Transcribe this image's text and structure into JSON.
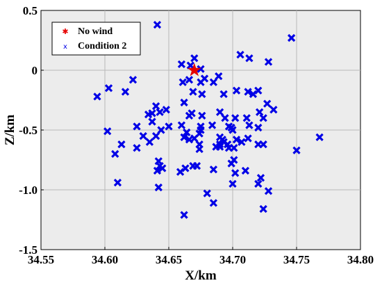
{
  "chart_data": {
    "type": "scatter",
    "title": "",
    "xlabel": "X/km",
    "ylabel": "Z/km",
    "xlim": [
      34.55,
      34.8
    ],
    "ylim": [
      -1.5,
      0.5
    ],
    "xticks": [
      "34.55",
      "34.60",
      "34.65",
      "34.70",
      "34.75",
      "34.80"
    ],
    "yticks": [
      "0.5",
      "0",
      "-0.5",
      "-1.0",
      "-1.5"
    ],
    "xtick_values": [
      34.55,
      34.6,
      34.65,
      34.7,
      34.75,
      34.8
    ],
    "ytick_values": [
      0.5,
      0,
      -0.5,
      -1.0,
      -1.5
    ],
    "grid": true,
    "legend_position": "top-left",
    "colors": {
      "background": "#ececec",
      "no_wind": "#e60000",
      "condition2": "#0000e6"
    },
    "series": [
      {
        "name": "No wind",
        "marker": "star",
        "points": [
          [
            34.67,
            0.0
          ]
        ]
      },
      {
        "name": "Condition 2",
        "marker": "x",
        "points": [
          [
            34.641,
            0.38
          ],
          [
            34.746,
            0.27
          ],
          [
            34.706,
            0.13
          ],
          [
            34.713,
            0.1
          ],
          [
            34.728,
            0.07
          ],
          [
            34.67,
            0.1
          ],
          [
            34.66,
            0.05
          ],
          [
            34.667,
            0.04
          ],
          [
            34.675,
            0.01
          ],
          [
            34.622,
            -0.08
          ],
          [
            34.603,
            -0.15
          ],
          [
            34.616,
            -0.18
          ],
          [
            34.594,
            -0.22
          ],
          [
            34.666,
            -0.08
          ],
          [
            34.661,
            -0.1
          ],
          [
            34.678,
            -0.07
          ],
          [
            34.689,
            -0.05
          ],
          [
            34.675,
            -0.1
          ],
          [
            34.685,
            -0.1
          ],
          [
            34.676,
            -0.2
          ],
          [
            34.669,
            -0.18
          ],
          [
            34.693,
            -0.2
          ],
          [
            34.703,
            -0.17
          ],
          [
            34.712,
            -0.18
          ],
          [
            34.716,
            -0.2
          ],
          [
            34.72,
            -0.17
          ],
          [
            34.727,
            -0.28
          ],
          [
            34.732,
            -0.33
          ],
          [
            34.64,
            -0.3
          ],
          [
            34.648,
            -0.33
          ],
          [
            34.637,
            -0.36
          ],
          [
            34.643,
            -0.35
          ],
          [
            34.634,
            -0.37
          ],
          [
            34.662,
            -0.27
          ],
          [
            34.676,
            -0.38
          ],
          [
            34.666,
            -0.38
          ],
          [
            34.668,
            -0.36
          ],
          [
            34.69,
            -0.35
          ],
          [
            34.694,
            -0.4
          ],
          [
            34.702,
            -0.4
          ],
          [
            34.711,
            -0.4
          ],
          [
            34.721,
            -0.35
          ],
          [
            34.724,
            -0.4
          ],
          [
            34.637,
            -0.43
          ],
          [
            34.625,
            -0.47
          ],
          [
            34.65,
            -0.47
          ],
          [
            34.644,
            -0.5
          ],
          [
            34.66,
            -0.46
          ],
          [
            34.664,
            -0.52
          ],
          [
            34.675,
            -0.47
          ],
          [
            34.675,
            -0.5
          ],
          [
            34.674,
            -0.53
          ],
          [
            34.684,
            -0.46
          ],
          [
            34.697,
            -0.47
          ],
          [
            34.7,
            -0.5
          ],
          [
            34.699,
            -0.48
          ],
          [
            34.713,
            -0.46
          ],
          [
            34.72,
            -0.48
          ],
          [
            34.602,
            -0.51
          ],
          [
            34.63,
            -0.55
          ],
          [
            34.64,
            -0.55
          ],
          [
            34.662,
            -0.56
          ],
          [
            34.666,
            -0.58
          ],
          [
            34.67,
            -0.57
          ],
          [
            34.69,
            -0.56
          ],
          [
            34.692,
            -0.58
          ],
          [
            34.693,
            -0.6
          ],
          [
            34.696,
            -0.62
          ],
          [
            34.703,
            -0.58
          ],
          [
            34.712,
            -0.57
          ],
          [
            34.707,
            -0.6
          ],
          [
            34.72,
            -0.62
          ],
          [
            34.724,
            -0.62
          ],
          [
            34.75,
            -0.67
          ],
          [
            34.768,
            -0.56
          ],
          [
            34.613,
            -0.62
          ],
          [
            34.608,
            -0.7
          ],
          [
            34.635,
            -0.6
          ],
          [
            34.625,
            -0.65
          ],
          [
            34.674,
            -0.62
          ],
          [
            34.674,
            -0.66
          ],
          [
            34.69,
            -0.62
          ],
          [
            34.687,
            -0.64
          ],
          [
            34.69,
            -0.64
          ],
          [
            34.697,
            -0.65
          ],
          [
            34.701,
            -0.65
          ],
          [
            34.642,
            -0.76
          ],
          [
            34.643,
            -0.8
          ],
          [
            34.645,
            -0.82
          ],
          [
            34.641,
            -0.84
          ],
          [
            34.659,
            -0.85
          ],
          [
            34.663,
            -0.82
          ],
          [
            34.669,
            -0.8
          ],
          [
            34.672,
            -0.8
          ],
          [
            34.701,
            -0.75
          ],
          [
            34.699,
            -0.78
          ],
          [
            34.702,
            -0.86
          ],
          [
            34.685,
            -0.83
          ],
          [
            34.71,
            -0.84
          ],
          [
            34.722,
            -0.9
          ],
          [
            34.72,
            -0.95
          ],
          [
            34.61,
            -0.94
          ],
          [
            34.642,
            -0.98
          ],
          [
            34.7,
            -0.95
          ],
          [
            34.728,
            -1.01
          ],
          [
            34.68,
            -1.03
          ],
          [
            34.685,
            -1.11
          ],
          [
            34.724,
            -1.16
          ],
          [
            34.662,
            -1.21
          ]
        ]
      }
    ]
  }
}
